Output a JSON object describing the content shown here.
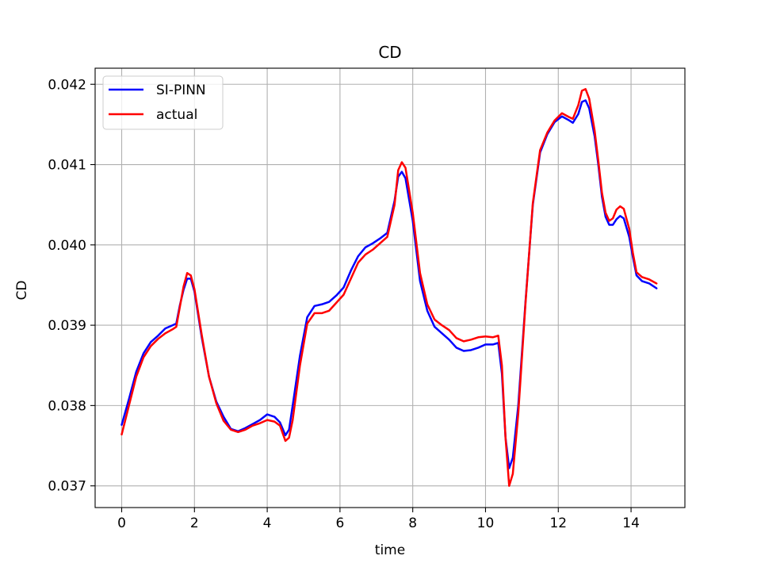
{
  "chart_data": {
    "type": "line",
    "title": "CD",
    "xlabel": "time",
    "ylabel": "CD",
    "xlim": [
      -0.73,
      15.48
    ],
    "ylim": [
      0.03673,
      0.0422
    ],
    "x_ticks": [
      0,
      2,
      4,
      6,
      8,
      10,
      12,
      14
    ],
    "y_ticks": [
      0.037,
      0.038,
      0.039,
      0.04,
      0.041,
      0.042
    ],
    "x_tick_labels": [
      "0",
      "2",
      "4",
      "6",
      "8",
      "10",
      "12",
      "14"
    ],
    "y_tick_labels": [
      "0.037",
      "0.038",
      "0.039",
      "0.040",
      "0.041",
      "0.042"
    ],
    "grid": true,
    "legend_position": "upper-left",
    "series": [
      {
        "name": "SI-PINN",
        "color": "#0000ff",
        "points": [
          [
            0,
            0.03776
          ],
          [
            0.2,
            0.03808
          ],
          [
            0.4,
            0.03842
          ],
          [
            0.6,
            0.03865
          ],
          [
            0.8,
            0.03879
          ],
          [
            1.0,
            0.03887
          ],
          [
            1.2,
            0.03896
          ],
          [
            1.4,
            0.039
          ],
          [
            1.5,
            0.03902
          ],
          [
            1.6,
            0.03925
          ],
          [
            1.7,
            0.03944
          ],
          [
            1.8,
            0.03958
          ],
          [
            1.9,
            0.03958
          ],
          [
            2.0,
            0.03942
          ],
          [
            2.2,
            0.03885
          ],
          [
            2.4,
            0.03836
          ],
          [
            2.6,
            0.03805
          ],
          [
            2.8,
            0.03786
          ],
          [
            3.0,
            0.03771
          ],
          [
            3.2,
            0.03768
          ],
          [
            3.4,
            0.03772
          ],
          [
            3.6,
            0.03777
          ],
          [
            3.8,
            0.03782
          ],
          [
            4.0,
            0.03789
          ],
          [
            4.2,
            0.03786
          ],
          [
            4.35,
            0.03779
          ],
          [
            4.5,
            0.03763
          ],
          [
            4.6,
            0.0377
          ],
          [
            4.7,
            0.038
          ],
          [
            4.9,
            0.03862
          ],
          [
            5.1,
            0.0391
          ],
          [
            5.3,
            0.03924
          ],
          [
            5.5,
            0.03926
          ],
          [
            5.7,
            0.03929
          ],
          [
            5.9,
            0.03937
          ],
          [
            6.1,
            0.03947
          ],
          [
            6.3,
            0.03968
          ],
          [
            6.5,
            0.03986
          ],
          [
            6.7,
            0.03997
          ],
          [
            6.9,
            0.04002
          ],
          [
            7.1,
            0.04008
          ],
          [
            7.3,
            0.04015
          ],
          [
            7.5,
            0.04055
          ],
          [
            7.6,
            0.04085
          ],
          [
            7.7,
            0.04091
          ],
          [
            7.8,
            0.04083
          ],
          [
            8.0,
            0.0403
          ],
          [
            8.2,
            0.03955
          ],
          [
            8.4,
            0.03918
          ],
          [
            8.6,
            0.03898
          ],
          [
            8.8,
            0.0389
          ],
          [
            9.0,
            0.03882
          ],
          [
            9.2,
            0.03872
          ],
          [
            9.4,
            0.03868
          ],
          [
            9.6,
            0.03869
          ],
          [
            9.8,
            0.03872
          ],
          [
            10.0,
            0.03876
          ],
          [
            10.2,
            0.03876
          ],
          [
            10.35,
            0.03878
          ],
          [
            10.45,
            0.0384
          ],
          [
            10.55,
            0.0376
          ],
          [
            10.65,
            0.03722
          ],
          [
            10.75,
            0.03735
          ],
          [
            10.9,
            0.038
          ],
          [
            11.1,
            0.0393
          ],
          [
            11.3,
            0.0405
          ],
          [
            11.5,
            0.04115
          ],
          [
            11.7,
            0.04138
          ],
          [
            11.9,
            0.04153
          ],
          [
            12.1,
            0.0416
          ],
          [
            12.3,
            0.04155
          ],
          [
            12.4,
            0.04152
          ],
          [
            12.55,
            0.04163
          ],
          [
            12.65,
            0.04178
          ],
          [
            12.75,
            0.0418
          ],
          [
            12.85,
            0.0417
          ],
          [
            13.0,
            0.04135
          ],
          [
            13.1,
            0.041
          ],
          [
            13.2,
            0.0406
          ],
          [
            13.3,
            0.04035
          ],
          [
            13.4,
            0.04025
          ],
          [
            13.5,
            0.04025
          ],
          [
            13.6,
            0.04032
          ],
          [
            13.7,
            0.04036
          ],
          [
            13.8,
            0.04033
          ],
          [
            13.95,
            0.0401
          ],
          [
            14.05,
            0.03985
          ],
          [
            14.15,
            0.03962
          ],
          [
            14.3,
            0.03955
          ],
          [
            14.5,
            0.03952
          ],
          [
            14.7,
            0.03946
          ]
        ]
      },
      {
        "name": "actual",
        "color": "#ff0000",
        "points": [
          [
            0,
            0.03764
          ],
          [
            0.2,
            0.038
          ],
          [
            0.4,
            0.03836
          ],
          [
            0.6,
            0.0386
          ],
          [
            0.8,
            0.03874
          ],
          [
            1.0,
            0.03883
          ],
          [
            1.2,
            0.0389
          ],
          [
            1.4,
            0.03895
          ],
          [
            1.5,
            0.03898
          ],
          [
            1.6,
            0.03923
          ],
          [
            1.7,
            0.03948
          ],
          [
            1.8,
            0.03965
          ],
          [
            1.9,
            0.03962
          ],
          [
            2.0,
            0.03945
          ],
          [
            2.2,
            0.03888
          ],
          [
            2.4,
            0.03836
          ],
          [
            2.6,
            0.03803
          ],
          [
            2.8,
            0.03781
          ],
          [
            3.0,
            0.0377
          ],
          [
            3.2,
            0.03767
          ],
          [
            3.4,
            0.0377
          ],
          [
            3.6,
            0.03775
          ],
          [
            3.8,
            0.03778
          ],
          [
            4.0,
            0.03782
          ],
          [
            4.2,
            0.0378
          ],
          [
            4.35,
            0.03775
          ],
          [
            4.5,
            0.03756
          ],
          [
            4.6,
            0.0376
          ],
          [
            4.7,
            0.03782
          ],
          [
            4.9,
            0.0385
          ],
          [
            5.1,
            0.03902
          ],
          [
            5.3,
            0.03915
          ],
          [
            5.5,
            0.03915
          ],
          [
            5.7,
            0.03918
          ],
          [
            5.9,
            0.03928
          ],
          [
            6.1,
            0.03938
          ],
          [
            6.3,
            0.03958
          ],
          [
            6.5,
            0.03978
          ],
          [
            6.7,
            0.03988
          ],
          [
            6.9,
            0.03994
          ],
          [
            7.1,
            0.04002
          ],
          [
            7.3,
            0.0401
          ],
          [
            7.5,
            0.0405
          ],
          [
            7.6,
            0.04093
          ],
          [
            7.7,
            0.04103
          ],
          [
            7.8,
            0.04096
          ],
          [
            8.0,
            0.0404
          ],
          [
            8.2,
            0.03965
          ],
          [
            8.4,
            0.03926
          ],
          [
            8.6,
            0.03907
          ],
          [
            8.8,
            0.039
          ],
          [
            9.0,
            0.03894
          ],
          [
            9.2,
            0.03884
          ],
          [
            9.4,
            0.0388
          ],
          [
            9.6,
            0.03882
          ],
          [
            9.8,
            0.03885
          ],
          [
            10.0,
            0.03886
          ],
          [
            10.2,
            0.03885
          ],
          [
            10.35,
            0.03887
          ],
          [
            10.45,
            0.0385
          ],
          [
            10.55,
            0.0376
          ],
          [
            10.65,
            0.037
          ],
          [
            10.75,
            0.03715
          ],
          [
            10.9,
            0.0379
          ],
          [
            11.1,
            0.03928
          ],
          [
            11.3,
            0.04052
          ],
          [
            11.5,
            0.04118
          ],
          [
            11.7,
            0.0414
          ],
          [
            11.9,
            0.04155
          ],
          [
            12.1,
            0.04164
          ],
          [
            12.3,
            0.04159
          ],
          [
            12.4,
            0.04157
          ],
          [
            12.55,
            0.04174
          ],
          [
            12.65,
            0.04192
          ],
          [
            12.75,
            0.04194
          ],
          [
            12.85,
            0.04182
          ],
          [
            13.0,
            0.04142
          ],
          [
            13.1,
            0.04105
          ],
          [
            13.2,
            0.04065
          ],
          [
            13.3,
            0.0404
          ],
          [
            13.4,
            0.0403
          ],
          [
            13.5,
            0.04033
          ],
          [
            13.6,
            0.04044
          ],
          [
            13.7,
            0.04048
          ],
          [
            13.8,
            0.04045
          ],
          [
            13.95,
            0.0402
          ],
          [
            14.05,
            0.0399
          ],
          [
            14.15,
            0.03966
          ],
          [
            14.3,
            0.0396
          ],
          [
            14.5,
            0.03957
          ],
          [
            14.7,
            0.03952
          ]
        ]
      }
    ]
  }
}
